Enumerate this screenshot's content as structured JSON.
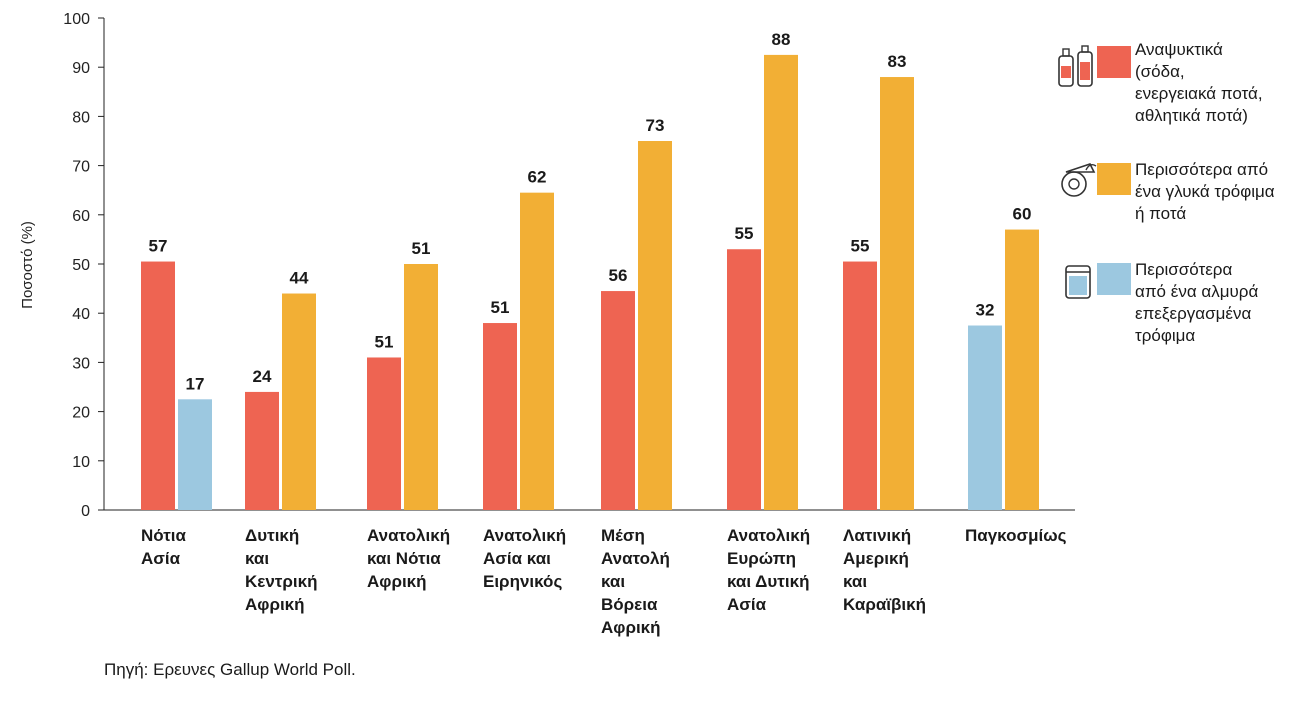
{
  "chart_data": {
    "type": "bar",
    "ylabel": "Ποσοστό (%)",
    "ylim": [
      0,
      100
    ],
    "yticks": [
      0,
      10,
      20,
      30,
      40,
      50,
      60,
      70,
      80,
      90,
      100
    ],
    "grid": false,
    "legend_position": "right",
    "categories": [
      [
        "Νότια",
        "Ασία"
      ],
      [
        "Δυτική",
        "και",
        "Κεντρική",
        "Αφρική"
      ],
      [
        "Ανατολική",
        "και Νότια",
        "Αφρική"
      ],
      [
        "Ανατολική",
        "Ασία και",
        "Ειρηνικός"
      ],
      [
        "Μέση",
        "Ανατολή",
        "και",
        "Βόρεια",
        "Αφρική"
      ],
      [
        "Ανατολική",
        "Ευρώπη",
        "και Δυτική",
        "Ασία"
      ],
      [
        "Λατινική",
        "Αμερική",
        "και",
        "Καραϊβική"
      ],
      [
        "Παγκοσμίως"
      ]
    ],
    "series": [
      {
        "name": "Αναψυκτικά (σόδα, ενεργειακά ποτά, αθλητικά ποτά)",
        "color": "#EE6452",
        "values": [
          57,
          24,
          51,
          51,
          56,
          55,
          55,
          null
        ],
        "bar_heights": [
          50.5,
          24,
          31,
          38,
          44.5,
          53,
          50.5,
          null
        ]
      },
      {
        "name": "Περισσότερα από ένα γλυκά τρόφιμα ή ποτά",
        "color": "#F2AF35",
        "values": [
          null,
          44,
          51,
          62,
          73,
          88,
          83,
          60
        ],
        "bar_heights": [
          null,
          44,
          50,
          64.5,
          75,
          92.5,
          88,
          57
        ]
      },
      {
        "name": "Περισσότερα από ένα αλμυρά επεξεργασμένα τρόφιμα",
        "color": "#9CC8E0",
        "values": [
          17,
          null,
          null,
          null,
          null,
          null,
          null,
          32
        ],
        "bar_heights": [
          22.5,
          null,
          null,
          null,
          null,
          null,
          null,
          37.5
        ]
      }
    ],
    "bar_order": [
      [
        0,
        2
      ],
      [
        0,
        1
      ],
      [
        0,
        1
      ],
      [
        0,
        1
      ],
      [
        0,
        1
      ],
      [
        0,
        1
      ],
      [
        0,
        1
      ],
      [
        2,
        1
      ]
    ],
    "legend": [
      {
        "lines": [
          "Αναψυκτικά",
          "(σόδα,",
          "ενεργειακά ποτά,",
          "αθλητικά ποτά)"
        ],
        "icon": "soda-bottles-icon"
      },
      {
        "lines": [
          "Περισσότερα από",
          "ένα γλυκά τρόφιμα",
          "ή ποτά"
        ],
        "icon": "cake-icon"
      },
      {
        "lines": [
          "Περισσότερα",
          "από ένα αλμυρά",
          "επεξεργασμένα",
          "τρόφιμα"
        ],
        "icon": "snack-jar-icon"
      }
    ]
  },
  "source": "Πηγή: Ερευνες Gallup World Poll."
}
